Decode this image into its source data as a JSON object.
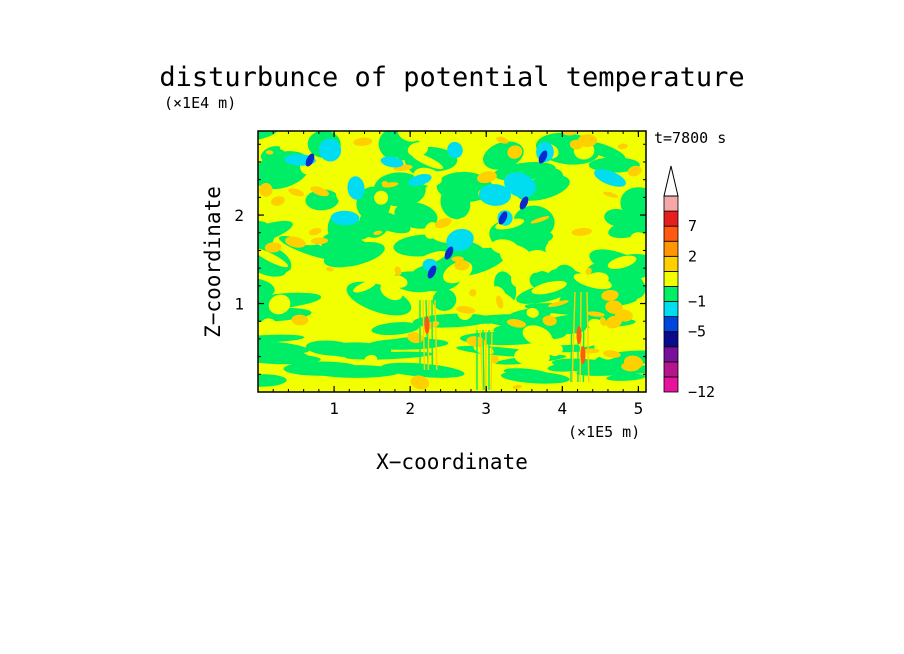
{
  "chart_data": {
    "type": "heatmap",
    "title": "disturbunce of potential temperature",
    "time_label": "t=7800 s",
    "x_axis": {
      "label": "X−coordinate",
      "unit_label": "(×1E5 m)",
      "range": [
        0,
        5.1
      ],
      "ticks": [
        1,
        2,
        3,
        4,
        5
      ],
      "tick_labels": [
        "1",
        "2",
        "3",
        "4",
        "5"
      ]
    },
    "y_axis": {
      "label": "Z−coordinate",
      "unit_label": "(×1E4 m)",
      "range": [
        0,
        2.95
      ],
      "ticks": [
        1,
        2
      ],
      "tick_labels": [
        "1",
        "2"
      ]
    },
    "colorbar": {
      "levels": [
        -12,
        -11,
        -9,
        -7,
        -5,
        -3,
        -1,
        0,
        1,
        2,
        4,
        7,
        9,
        11
      ],
      "colors": [
        "#e8139b",
        "#b5158c",
        "#7a0f9e",
        "#0a0a8c",
        "#0045e0",
        "#00ddf0",
        "#00ee66",
        "#f2ff00",
        "#ffd000",
        "#ff9500",
        "#ff5a10",
        "#e61e1e",
        "#f4a8a8"
      ],
      "extend": "max",
      "tick_values": [
        7,
        2,
        -1,
        -5,
        -12
      ],
      "tick_labels": [
        "7",
        "2",
        "−1",
        "−5",
        "−12"
      ]
    },
    "field_colors": {
      "yellow": "#f2ff00",
      "green": "#00ee66",
      "orange": "#ffd000",
      "cyan": "#00ddf0",
      "blue": "#0a2ad0",
      "red": "#ff5a10"
    }
  }
}
